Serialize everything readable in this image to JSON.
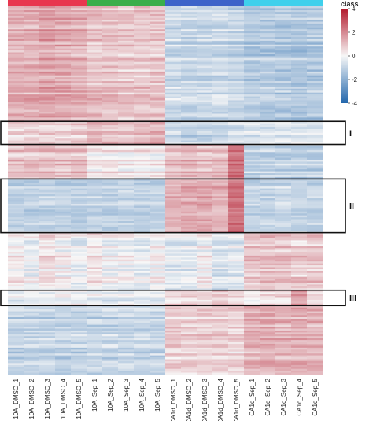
{
  "chart_data": {
    "type": "heatmap",
    "columns": [
      "10A_DMSO_1",
      "10A_DMSO_2",
      "10A_DMSO_3",
      "10A_DMSO_4",
      "10A_DMSO_5",
      "10A_Sep_1",
      "10A_Sep_2",
      "10A_Sep_3",
      "10A_Sep_4",
      "10A_Sep_5",
      "CA1d_DMSO_1",
      "CA1d_DMSO_2",
      "CA1d_DMSO_3",
      "CA1d_DMSO_4",
      "CA1d_DMSO_5",
      "CA1d_Sep_1",
      "CA1d_Sep_2",
      "CA1d_Sep_3",
      "CA1d_Sep_4",
      "CA1d_Sep_5"
    ],
    "class_groups": [
      {
        "start": 0,
        "count": 5,
        "color": "#e8364f"
      },
      {
        "start": 5,
        "count": 5,
        "color": "#3aae4a"
      },
      {
        "start": 10,
        "count": 5,
        "color": "#3d63c9"
      },
      {
        "start": 15,
        "count": 5,
        "color": "#3fd0ec"
      }
    ],
    "row_blocks": [
      {
        "rows": 60,
        "means": [
          1.3,
          1.3,
          1.5,
          1.4,
          1.3,
          1.0,
          1.0,
          0.9,
          0.9,
          0.9,
          -0.8,
          -0.9,
          -0.8,
          -0.8,
          -0.9,
          -1.2,
          -1.2,
          -1.2,
          -1.3,
          -1.2
        ]
      },
      {
        "rows": 12,
        "means": [
          0.6,
          0.6,
          0.7,
          0.6,
          0.7,
          1.1,
          1.0,
          1.0,
          1.1,
          1.2,
          -0.9,
          -1.0,
          -0.9,
          -0.9,
          -0.6,
          -0.5,
          -0.5,
          -0.4,
          -0.5,
          -0.4
        ]
      },
      {
        "rows": 18,
        "means": [
          1.0,
          1.0,
          1.1,
          1.0,
          1.0,
          0.3,
          0.3,
          0.2,
          0.3,
          0.2,
          1.0,
          1.1,
          1.0,
          1.1,
          2.4,
          -1.0,
          -1.0,
          -1.0,
          -1.1,
          -1.0
        ]
      },
      {
        "rows": 28,
        "means": [
          -0.9,
          -0.9,
          -0.8,
          -0.9,
          -0.9,
          -0.8,
          -0.9,
          -0.8,
          -0.9,
          -0.8,
          1.4,
          1.5,
          1.6,
          1.5,
          2.6,
          -0.8,
          -0.8,
          -0.7,
          -0.8,
          -0.8
        ]
      },
      {
        "rows": 30,
        "means": [
          0.2,
          -0.1,
          0.5,
          0.1,
          -0.2,
          0.3,
          -0.1,
          0.0,
          -0.3,
          0.1,
          -0.4,
          -0.4,
          0.1,
          -0.5,
          -0.4,
          0.9,
          1.0,
          0.9,
          0.8,
          0.9
        ]
      },
      {
        "rows": 8,
        "means": [
          -0.2,
          -0.2,
          -0.1,
          -0.2,
          -0.2,
          -0.2,
          -0.3,
          -0.2,
          -0.2,
          -0.2,
          0.5,
          0.6,
          0.6,
          0.9,
          0.5,
          0.3,
          0.4,
          0.6,
          1.6,
          0.6
        ]
      },
      {
        "rows": 36,
        "means": [
          -1.0,
          -1.0,
          -1.0,
          -1.0,
          -1.0,
          -0.9,
          -0.9,
          -0.9,
          -0.9,
          -0.9,
          0.7,
          0.6,
          0.7,
          0.7,
          0.6,
          1.2,
          1.3,
          1.2,
          1.3,
          1.2
        ]
      }
    ],
    "highlight_boxes": [
      {
        "label": "I",
        "start_row": 60,
        "end_row": 72
      },
      {
        "label": "II",
        "start_row": 90,
        "end_row": 118
      },
      {
        "label": "III",
        "start_row": 148,
        "end_row": 156
      }
    ],
    "legend": {
      "title": "class",
      "ticks": [
        4,
        2,
        0,
        -2,
        -4
      ],
      "range": [
        -4,
        4
      ],
      "colors": {
        "low": "#2166ac",
        "mid": "#f7f7f7",
        "high": "#b2182b"
      }
    }
  }
}
